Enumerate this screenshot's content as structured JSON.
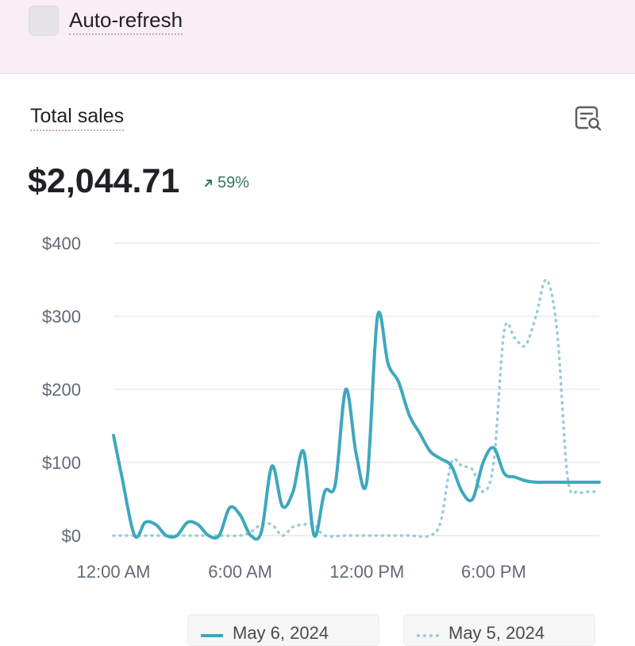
{
  "topbar": {
    "auto_refresh_label": "Auto-refresh"
  },
  "card": {
    "title": "Total sales",
    "total_value": "$2,044.71",
    "delta": "59%",
    "report_icon": "report-search-icon"
  },
  "colors": {
    "primary": "#3ea8bd",
    "comparison": "#98cdd6",
    "positive": "#2f7a5a"
  },
  "chart_data": {
    "type": "line",
    "y_ticks": [
      "$400",
      "$300",
      "$200",
      "$100",
      "$0"
    ],
    "x_ticks": [
      "12:00 AM",
      "6:00 AM",
      "12:00 PM",
      "6:00 PM"
    ],
    "ylim": [
      0,
      400
    ],
    "xlim": [
      0,
      23
    ],
    "grid": true,
    "legend_position": "bottom",
    "series": [
      {
        "name": "May 6, 2024",
        "style": "solid",
        "x": [
          0,
          0.4,
          1,
          1.5,
          2,
          2.5,
          3,
          3.5,
          4,
          4.5,
          5,
          5.5,
          6,
          6.5,
          7,
          7.5,
          8,
          8.5,
          9,
          9.5,
          10,
          10.5,
          11,
          11.5,
          12,
          12.5,
          13,
          13.5,
          14,
          14.5,
          15,
          15.5,
          16,
          16.5,
          17,
          17.5,
          18,
          18.5,
          19,
          19.5,
          20,
          20.5,
          21,
          21.5,
          22,
          22.5,
          23
        ],
        "values": [
          137,
          80,
          0,
          18,
          15,
          0,
          0,
          18,
          15,
          0,
          0,
          38,
          28,
          0,
          5,
          95,
          40,
          60,
          115,
          0,
          60,
          70,
          200,
          110,
          75,
          300,
          235,
          210,
          165,
          140,
          115,
          105,
          95,
          60,
          50,
          100,
          120,
          85,
          80,
          75,
          73,
          73,
          73,
          73,
          73,
          73,
          73
        ]
      },
      {
        "name": "May 5, 2024",
        "style": "dotted",
        "x": [
          0,
          1,
          2,
          3,
          4,
          5,
          6,
          6.5,
          7,
          7.5,
          8,
          8.5,
          9,
          9.5,
          10,
          11,
          12,
          13,
          14,
          15,
          15.5,
          16,
          16.5,
          17,
          17.5,
          18,
          18.5,
          19,
          19.5,
          20,
          20.5,
          21,
          21.5,
          22,
          22.5,
          23
        ],
        "values": [
          0,
          0,
          0,
          0,
          0,
          0,
          0,
          5,
          15,
          15,
          0,
          12,
          15,
          15,
          0,
          0,
          0,
          0,
          0,
          0,
          20,
          100,
          95,
          90,
          60,
          100,
          280,
          270,
          260,
          300,
          350,
          280,
          80,
          60,
          60,
          60
        ]
      }
    ]
  }
}
